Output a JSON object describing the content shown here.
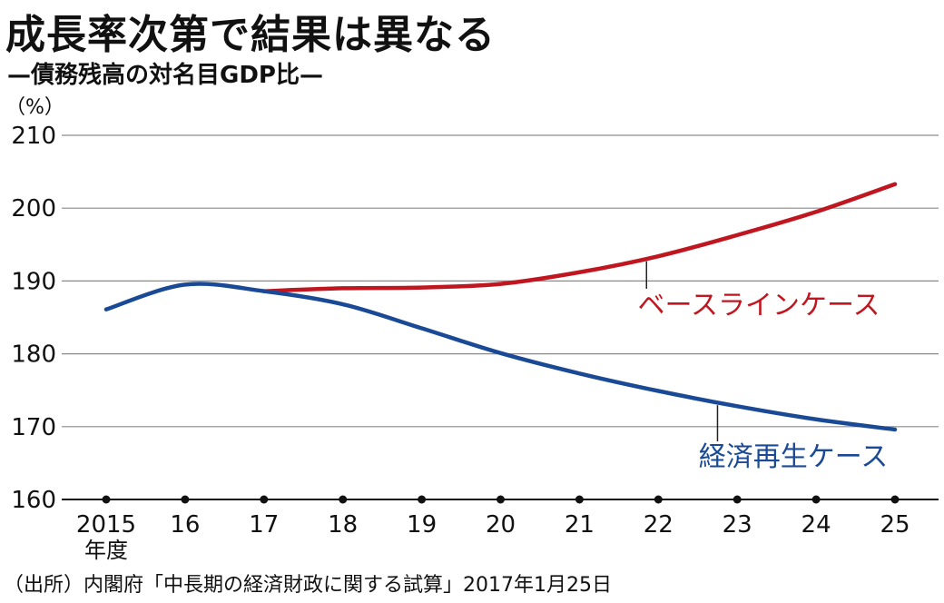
{
  "title": "成長率次第で結果は異なる",
  "subtitle": "—債務残高の対名目GDP比—",
  "unit": "（%）",
  "source": "（出所）内閣府「中長期の経済財政に関する試算」2017年1月25日",
  "chart_data": {
    "type": "line",
    "title": "成長率次第で結果は異なる",
    "subtitle": "—債務残高の対名目GDP比—",
    "ylabel": "（%）",
    "xlabel_suffix": "年度",
    "x": [
      "2015",
      "16",
      "17",
      "18",
      "19",
      "20",
      "21",
      "22",
      "23",
      "24",
      "25"
    ],
    "ylim": [
      160,
      210
    ],
    "yticks": [
      160,
      170,
      180,
      190,
      200,
      210
    ],
    "grid": true,
    "series": [
      {
        "name": "ベースラインケース",
        "color": "#c0161f",
        "x": [
          "17",
          "18",
          "19",
          "20",
          "21",
          "22",
          "23",
          "24",
          "25"
        ],
        "values": [
          188.6,
          189.0,
          189.1,
          189.6,
          191.2,
          193.4,
          196.3,
          199.5,
          203.3
        ]
      },
      {
        "name": "経済再生ケース",
        "color": "#1a4a96",
        "x": [
          "2015",
          "16",
          "17",
          "18",
          "19",
          "20",
          "21",
          "22",
          "23",
          "24",
          "25"
        ],
        "values": [
          186.1,
          189.5,
          188.6,
          186.8,
          183.5,
          180.1,
          177.3,
          174.9,
          172.8,
          171.0,
          169.6
        ]
      }
    ]
  }
}
